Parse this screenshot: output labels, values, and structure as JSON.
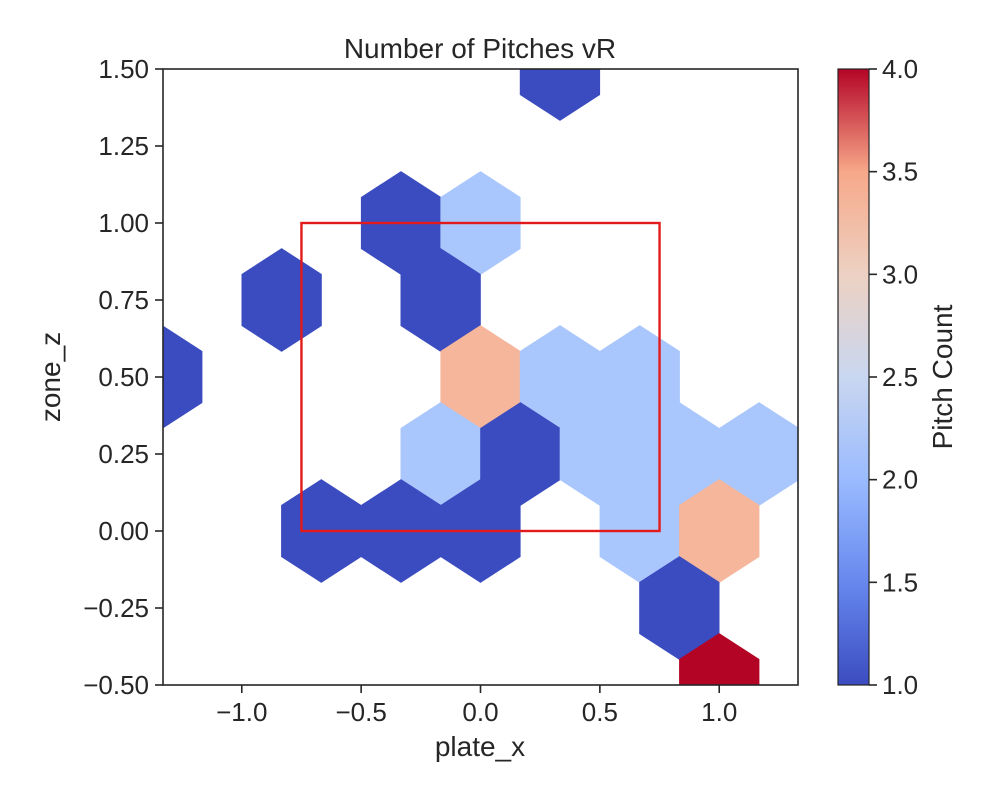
{
  "chart_data": {
    "type": "heatmap",
    "subtype": "hexbin",
    "title": "Number of Pitches vR",
    "xlabel": "plate_x",
    "ylabel": "zone_z",
    "xlim": [
      -1.33,
      1.33
    ],
    "ylim": [
      -0.5,
      1.5
    ],
    "x_ticks": [
      -1.0,
      -0.5,
      0.0,
      0.5,
      1.0
    ],
    "x_tick_labels": [
      "−1.0",
      "−0.5",
      "0.0",
      "0.5",
      "1.0"
    ],
    "y_ticks": [
      -0.5,
      -0.25,
      0.0,
      0.25,
      0.5,
      0.75,
      1.0,
      1.25,
      1.5
    ],
    "y_tick_labels": [
      "−0.50",
      "−0.25",
      "0.00",
      "0.25",
      "0.50",
      "0.75",
      "1.00",
      "1.25",
      "1.50"
    ],
    "hex_width": 0.333,
    "hex_radius": 0.167,
    "bins": [
      {
        "x": -1.333,
        "y": 0.5,
        "count": 1
      },
      {
        "x": -0.833,
        "y": 0.75,
        "count": 1
      },
      {
        "x": -0.333,
        "y": 1.0,
        "count": 1
      },
      {
        "x": 0.0,
        "y": 1.0,
        "count": 2
      },
      {
        "x": -0.167,
        "y": 0.75,
        "count": 1
      },
      {
        "x": 0.0,
        "y": 0.5,
        "count": 3
      },
      {
        "x": 0.333,
        "y": 0.5,
        "count": 2
      },
      {
        "x": 0.667,
        "y": 0.5,
        "count": 2
      },
      {
        "x": -0.167,
        "y": 0.25,
        "count": 2
      },
      {
        "x": 0.167,
        "y": 0.25,
        "count": 1
      },
      {
        "x": 0.5,
        "y": 0.25,
        "count": 2
      },
      {
        "x": 0.833,
        "y": 0.25,
        "count": 2
      },
      {
        "x": 1.167,
        "y": 0.25,
        "count": 2
      },
      {
        "x": -0.667,
        "y": 0.0,
        "count": 1
      },
      {
        "x": -0.333,
        "y": 0.0,
        "count": 1
      },
      {
        "x": 0.0,
        "y": 0.0,
        "count": 1
      },
      {
        "x": 0.667,
        "y": 0.0,
        "count": 2
      },
      {
        "x": 1.0,
        "y": 0.0,
        "count": 3
      },
      {
        "x": 0.833,
        "y": -0.25,
        "count": 1
      },
      {
        "x": 1.0,
        "y": -0.5,
        "count": 4
      },
      {
        "x": 0.333,
        "y": 1.5,
        "count": 1
      }
    ],
    "strike_zone": {
      "x": [
        -0.75,
        0.75
      ],
      "y": [
        0.0,
        1.0
      ],
      "color": "#e31a1c"
    },
    "colorbar": {
      "label": "Pitch Count",
      "range": [
        1.0,
        4.0
      ],
      "ticks": [
        1.0,
        1.5,
        2.0,
        2.5,
        3.0,
        3.5,
        4.0
      ],
      "tick_labels": [
        "1.0",
        "1.5",
        "2.0",
        "2.5",
        "3.0",
        "3.5",
        "4.0"
      ],
      "colormap": "coolwarm",
      "colors": {
        "1": "#3b4cc0",
        "2": "#aac7fd",
        "3": "#f5b69b",
        "4": "#b40426"
      }
    },
    "grid": false,
    "legend": "none"
  }
}
